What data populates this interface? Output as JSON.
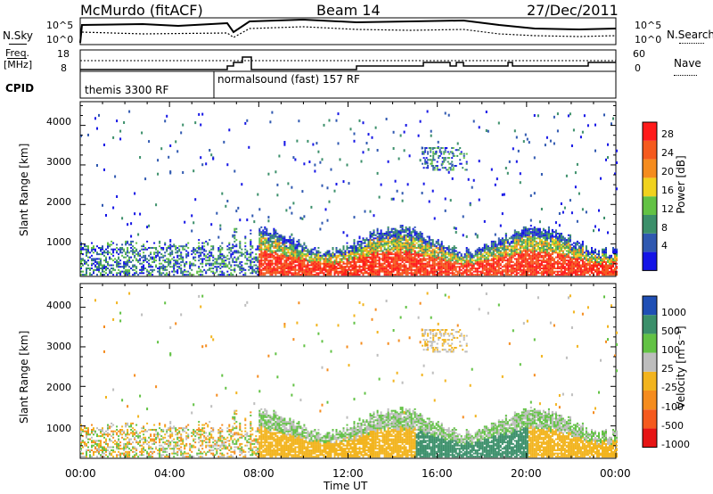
{
  "header": {
    "station": "McMurdo (fitACF)",
    "beam": "Beam 14",
    "date": "27/Dec/2011"
  },
  "top_panel": {
    "nsky_label": "N.Sky",
    "nsearch_label": "N.Search",
    "left_ticks": [
      "10^5",
      "10^0"
    ],
    "right_ticks": [
      "10^5",
      "10^0"
    ]
  },
  "freq_panel": {
    "freq_label": "Freq.",
    "unit_label": "[MHz]",
    "nave_label": "Nave",
    "left_ticks": [
      "18",
      "8"
    ],
    "right_ticks": [
      "60",
      "0"
    ]
  },
  "cpid": {
    "label": "CPID",
    "programs": [
      {
        "name": "themis 3300 RF",
        "start_hour": 0
      },
      {
        "name": "normalsound (fast) 157 RF",
        "start_hour": 6
      }
    ]
  },
  "colors": {
    "power": [
      "#1414e6",
      "#2f58b0",
      "#3b8f6a",
      "#62c244",
      "#f0d21e",
      "#f58c1e",
      "#f55a1e",
      "#ff1a1a"
    ],
    "velocity": [
      "#e61414",
      "#f55a1e",
      "#f58c1e",
      "#f2b41e",
      "#bdbdbd",
      "#62c244",
      "#3b8f6a",
      "#1f4fb5"
    ]
  },
  "chart_data": [
    {
      "type": "heatmap",
      "title": "",
      "ylabel": "Slant Range [km]",
      "xlabel": "",
      "x_range_hours": [
        0,
        24
      ],
      "ylim": [
        180,
        4600
      ],
      "yticks": [
        "1000",
        "2000",
        "3000",
        "4000"
      ],
      "colorbar_label": "Power [dB]",
      "colorbar_ticks": [
        "4",
        "8",
        "12",
        "16",
        "20",
        "24",
        "28"
      ],
      "value_range": [
        0,
        32
      ]
    },
    {
      "type": "heatmap",
      "title": "",
      "ylabel": "Slant Range [km]",
      "xlabel": "Time UT",
      "x_range_hours": [
        0,
        24
      ],
      "xticks": [
        "00:00",
        "04:00",
        "08:00",
        "12:00",
        "16:00",
        "20:00",
        "00:00"
      ],
      "ylim": [
        180,
        4600
      ],
      "yticks": [
        "1000",
        "2000",
        "3000",
        "4000"
      ],
      "colorbar_label": "Velocity [m s⁻¹]",
      "colorbar_ticks": [
        "1000",
        "500",
        "100",
        "25",
        "-25",
        "-100",
        "-500",
        "-1000"
      ]
    }
  ]
}
